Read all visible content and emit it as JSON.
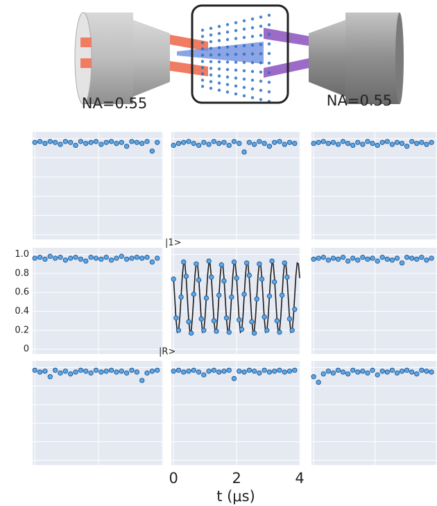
{
  "diagram": {
    "labels": [
      "NA=0.55",
      "NA=0.55"
    ]
  },
  "chart_data": [
    {
      "type": "scatter",
      "color": "#5aa9e6",
      "x": [
        0,
        0.16,
        0.32,
        0.48,
        0.64,
        0.8,
        0.96,
        1.12,
        1.28,
        1.44,
        1.6,
        1.76,
        1.92,
        2.08,
        2.24,
        2.4,
        2.56,
        2.72,
        2.88,
        3.04,
        3.2,
        3.36,
        3.52,
        3.68,
        3.84
      ],
      "values": [
        0.96,
        0.97,
        0.95,
        0.97,
        0.96,
        0.94,
        0.97,
        0.96,
        0.93,
        0.97,
        0.95,
        0.96,
        0.97,
        0.94,
        0.96,
        0.97,
        0.95,
        0.96,
        0.92,
        0.97,
        0.96,
        0.95,
        0.97,
        0.87,
        0.96
      ]
    },
    {
      "type": "scatter",
      "color": "#5aa9e6",
      "x": [
        0,
        0.16,
        0.32,
        0.48,
        0.64,
        0.8,
        0.96,
        1.12,
        1.28,
        1.44,
        1.6,
        1.76,
        1.92,
        2.08,
        2.24,
        2.4,
        2.56,
        2.72,
        2.88,
        3.04,
        3.2,
        3.36,
        3.52,
        3.68,
        3.84
      ],
      "values": [
        0.93,
        0.95,
        0.96,
        0.97,
        0.95,
        0.93,
        0.96,
        0.94,
        0.97,
        0.95,
        0.96,
        0.93,
        0.97,
        0.95,
        0.86,
        0.96,
        0.94,
        0.97,
        0.95,
        0.92,
        0.96,
        0.97,
        0.94,
        0.96,
        0.95
      ]
    },
    {
      "type": "scatter",
      "color": "#5aa9e6",
      "x": [
        0,
        0.16,
        0.32,
        0.48,
        0.64,
        0.8,
        0.96,
        1.12,
        1.28,
        1.44,
        1.6,
        1.76,
        1.92,
        2.08,
        2.24,
        2.4,
        2.56,
        2.72,
        2.88,
        3.04,
        3.2,
        3.36,
        3.52,
        3.68,
        3.84
      ],
      "values": [
        0.95,
        0.96,
        0.97,
        0.95,
        0.96,
        0.94,
        0.97,
        0.95,
        0.93,
        0.96,
        0.94,
        0.97,
        0.95,
        0.93,
        0.96,
        0.97,
        0.94,
        0.96,
        0.95,
        0.92,
        0.97,
        0.95,
        0.96,
        0.94,
        0.96
      ]
    },
    {
      "type": "scatter",
      "color": "#5aa9e6",
      "x": [
        0,
        0.16,
        0.32,
        0.48,
        0.64,
        0.8,
        0.96,
        1.12,
        1.28,
        1.44,
        1.6,
        1.76,
        1.92,
        2.08,
        2.24,
        2.4,
        2.56,
        2.72,
        2.88,
        3.04,
        3.2,
        3.36,
        3.52,
        3.68,
        3.84
      ],
      "values": [
        0.96,
        0.97,
        0.95,
        0.98,
        0.96,
        0.97,
        0.94,
        0.96,
        0.97,
        0.95,
        0.93,
        0.97,
        0.96,
        0.95,
        0.97,
        0.94,
        0.96,
        0.98,
        0.95,
        0.96,
        0.97,
        0.96,
        0.97,
        0.92,
        0.96
      ],
      "ylim": [
        -0.05,
        1.07
      ],
      "yticks": [
        {
          "value": 1,
          "label": "1.0"
        },
        0.8,
        0.6,
        0.4,
        0.2,
        0
      ]
    },
    {
      "type": "scatter",
      "color": "#5aa9e6",
      "annotations": [
        "|1>",
        "|R>"
      ],
      "x": [
        0,
        0.08,
        0.16,
        0.24,
        0.32,
        0.4,
        0.48,
        0.56,
        0.64,
        0.72,
        0.8,
        0.88,
        0.96,
        1.04,
        1.12,
        1.2,
        1.28,
        1.36,
        1.44,
        1.52,
        1.6,
        1.68,
        1.76,
        1.84,
        1.92,
        2,
        2.08,
        2.16,
        2.24,
        2.32,
        2.4,
        2.48,
        2.56,
        2.64,
        2.72,
        2.8,
        2.88,
        2.96,
        3.04,
        3.12,
        3.2,
        3.28,
        3.36,
        3.44,
        3.52,
        3.6,
        3.68,
        3.76,
        3.84
      ],
      "values": [
        0.74,
        0.33,
        0.2,
        0.55,
        0.92,
        0.77,
        0.29,
        0.17,
        0.58,
        0.9,
        0.73,
        0.32,
        0.2,
        0.54,
        0.93,
        0.76,
        0.3,
        0.19,
        0.57,
        0.89,
        0.72,
        0.33,
        0.18,
        0.55,
        0.92,
        0.75,
        0.31,
        0.21,
        0.58,
        0.91,
        0.78,
        0.29,
        0.17,
        0.53,
        0.9,
        0.74,
        0.34,
        0.2,
        0.56,
        0.93,
        0.71,
        0.3,
        0.18,
        0.57,
        0.91,
        0.76,
        0.32,
        0.2,
        0.42
      ],
      "fit": {
        "color": "#1a1a1a",
        "x": [
          0,
          0.04,
          0.08,
          0.12,
          0.16,
          0.2,
          0.24,
          0.28,
          0.32,
          0.36,
          0.4,
          0.44,
          0.48,
          0.52,
          0.56,
          0.6,
          0.64,
          0.68,
          0.72,
          0.76,
          0.8,
          0.84,
          0.88,
          0.92,
          0.96,
          1,
          1.04,
          1.08,
          1.12,
          1.16,
          1.2,
          1.24,
          1.28,
          1.32,
          1.36,
          1.4,
          1.44,
          1.48,
          1.52,
          1.56,
          1.6,
          1.64,
          1.68,
          1.72,
          1.76,
          1.8,
          1.84,
          1.88,
          1.92,
          1.96,
          2,
          2.04,
          2.08,
          2.12,
          2.16,
          2.2,
          2.24,
          2.28,
          2.32,
          2.36,
          2.4,
          2.44,
          2.48,
          2.52,
          2.56,
          2.6,
          2.64,
          2.68,
          2.72,
          2.76,
          2.8,
          2.84,
          2.88,
          2.92,
          2.96,
          3,
          3.04,
          3.08,
          3.12,
          3.16,
          3.2,
          3.24,
          3.28,
          3.32,
          3.36,
          3.4,
          3.44,
          3.48,
          3.52,
          3.56,
          3.6,
          3.64,
          3.68,
          3.72,
          3.76,
          3.8,
          3.84,
          3.88,
          3.92,
          3.96,
          4
        ],
        "values": [
          0.75,
          0.53,
          0.31,
          0.18,
          0.195,
          0.34,
          0.56,
          0.78,
          0.91,
          0.9,
          0.75,
          0.53,
          0.31,
          0.18,
          0.195,
          0.34,
          0.56,
          0.78,
          0.91,
          0.9,
          0.75,
          0.53,
          0.31,
          0.18,
          0.195,
          0.34,
          0.56,
          0.78,
          0.91,
          0.9,
          0.75,
          0.53,
          0.31,
          0.18,
          0.195,
          0.34,
          0.56,
          0.78,
          0.91,
          0.9,
          0.75,
          0.53,
          0.31,
          0.18,
          0.195,
          0.34,
          0.56,
          0.78,
          0.91,
          0.9,
          0.75,
          0.53,
          0.31,
          0.18,
          0.195,
          0.34,
          0.56,
          0.78,
          0.91,
          0.9,
          0.75,
          0.53,
          0.31,
          0.18,
          0.195,
          0.34,
          0.56,
          0.78,
          0.91,
          0.9,
          0.75,
          0.53,
          0.31,
          0.18,
          0.195,
          0.34,
          0.56,
          0.78,
          0.91,
          0.9,
          0.75,
          0.53,
          0.31,
          0.18,
          0.195,
          0.34,
          0.56,
          0.78,
          0.91,
          0.9,
          0.75,
          0.53,
          0.31,
          0.18,
          0.195,
          0.34,
          0.56,
          0.78,
          0.91,
          0.9,
          0.75
        ]
      }
    },
    {
      "type": "scatter",
      "color": "#5aa9e6",
      "x": [
        0,
        0.16,
        0.32,
        0.48,
        0.64,
        0.8,
        0.96,
        1.12,
        1.28,
        1.44,
        1.6,
        1.76,
        1.92,
        2.08,
        2.24,
        2.4,
        2.56,
        2.72,
        2.88,
        3.04,
        3.2,
        3.36,
        3.52,
        3.68,
        3.84
      ],
      "values": [
        0.95,
        0.96,
        0.97,
        0.94,
        0.96,
        0.95,
        0.97,
        0.93,
        0.96,
        0.94,
        0.97,
        0.95,
        0.96,
        0.93,
        0.97,
        0.95,
        0.94,
        0.96,
        0.91,
        0.97,
        0.96,
        0.95,
        0.97,
        0.94,
        0.96
      ]
    },
    {
      "type": "scatter",
      "color": "#5aa9e6",
      "x": [
        0,
        0.16,
        0.32,
        0.48,
        0.64,
        0.8,
        0.96,
        1.12,
        1.28,
        1.44,
        1.6,
        1.76,
        1.92,
        2.08,
        2.24,
        2.4,
        2.56,
        2.72,
        2.88,
        3.04,
        3.2,
        3.36,
        3.52,
        3.68,
        3.84
      ],
      "values": [
        0.97,
        0.95,
        0.96,
        0.9,
        0.97,
        0.94,
        0.96,
        0.93,
        0.95,
        0.97,
        0.96,
        0.94,
        0.97,
        0.95,
        0.96,
        0.97,
        0.95,
        0.96,
        0.94,
        0.97,
        0.95,
        0.86,
        0.94,
        0.96,
        0.97
      ]
    },
    {
      "type": "scatter",
      "color": "#5aa9e6",
      "x": [
        0,
        0.16,
        0.32,
        0.48,
        0.64,
        0.8,
        0.96,
        1.12,
        1.28,
        1.44,
        1.6,
        1.76,
        1.92,
        2.08,
        2.24,
        2.4,
        2.56,
        2.72,
        2.88,
        3.04,
        3.2,
        3.36,
        3.52,
        3.68,
        3.84
      ],
      "values": [
        0.96,
        0.97,
        0.95,
        0.96,
        0.97,
        0.95,
        0.92,
        0.96,
        0.97,
        0.95,
        0.96,
        0.97,
        0.88,
        0.96,
        0.95,
        0.97,
        0.96,
        0.94,
        0.97,
        0.95,
        0.96,
        0.97,
        0.95,
        0.96,
        0.97
      ],
      "xlim": [
        -0.07,
        4.02
      ],
      "xticks": [
        0,
        2,
        4
      ],
      "xlabel": "t (μs)"
    },
    {
      "type": "scatter",
      "color": "#5aa9e6",
      "x": [
        0,
        0.16,
        0.32,
        0.48,
        0.64,
        0.8,
        0.96,
        1.12,
        1.28,
        1.44,
        1.6,
        1.76,
        1.92,
        2.08,
        2.24,
        2.4,
        2.56,
        2.72,
        2.88,
        3.04,
        3.2,
        3.36,
        3.52,
        3.68,
        3.84
      ],
      "values": [
        0.9,
        0.84,
        0.93,
        0.96,
        0.94,
        0.97,
        0.95,
        0.93,
        0.97,
        0.95,
        0.96,
        0.94,
        0.97,
        0.92,
        0.96,
        0.95,
        0.97,
        0.94,
        0.96,
        0.97,
        0.95,
        0.93,
        0.97,
        0.96,
        0.95
      ]
    }
  ]
}
